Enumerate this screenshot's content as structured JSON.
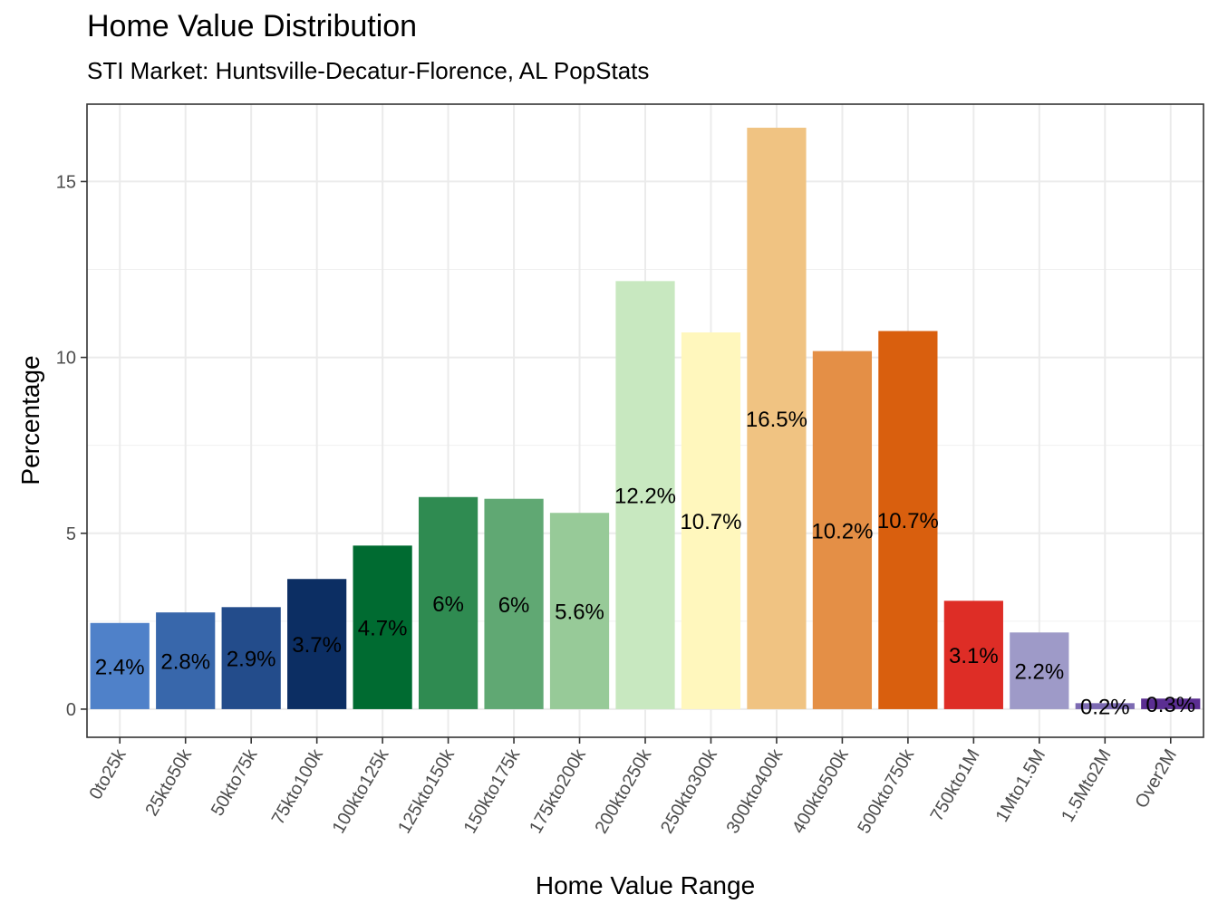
{
  "chart_data": {
    "type": "bar",
    "title": "Home Value Distribution",
    "subtitle": "STI Market: Huntsville-Decatur-Florence, AL PopStats",
    "xlabel": "Home Value Range",
    "ylabel": "Percentage",
    "ylim": [
      -0.8,
      17.2
    ],
    "yticks": [
      0,
      5,
      10,
      15
    ],
    "grid": true,
    "categories": [
      "0to25k",
      "25kto50k",
      "50kto75k",
      "75kto100k",
      "100kto125k",
      "125kto150k",
      "150kto175k",
      "175kto200k",
      "200kto250k",
      "250kto300k",
      "300kto400k",
      "400kto500k",
      "500kto750k",
      "750kto1M",
      "1Mto1.5M",
      "1.5Mto2M",
      "Over2M"
    ],
    "values": [
      2.45,
      2.75,
      2.9,
      3.7,
      4.65,
      6.03,
      5.98,
      5.58,
      12.17,
      10.71,
      16.53,
      10.18,
      10.75,
      3.08,
      2.18,
      0.17,
      0.3
    ],
    "labels": [
      "2.4%",
      "2.8%",
      "2.9%",
      "3.7%",
      "4.7%",
      "6%",
      "6%",
      "5.6%",
      "12.2%",
      "10.7%",
      "16.5%",
      "10.2%",
      "10.7%",
      "3.1%",
      "2.2%",
      "0.2%",
      "0.3%"
    ],
    "colors": [
      "#4f81c9",
      "#3867ab",
      "#234c8b",
      "#0c2e63",
      "#006b31",
      "#2f8b51",
      "#60a873",
      "#97ca98",
      "#c8e8c0",
      "#fff7bd",
      "#f0c382",
      "#e48f46",
      "#d95f0e",
      "#de2d26",
      "#9e9ac8",
      "#7c6ab2",
      "#5b2e92"
    ]
  }
}
